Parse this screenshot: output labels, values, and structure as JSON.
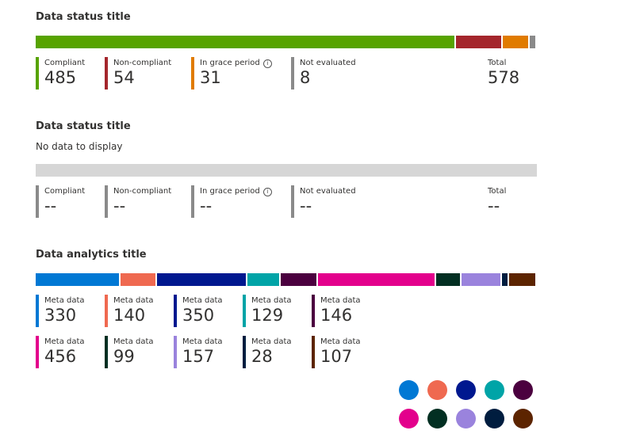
{
  "sections": [
    {
      "title": "Data status title",
      "items": [
        {
          "label": "Compliant",
          "value": 485,
          "color": "#57a300"
        },
        {
          "label": "Non-compliant",
          "value": 54,
          "color": "#a4262c"
        },
        {
          "label": "In grace period",
          "value": 31,
          "color": "#e07b00",
          "info": true
        },
        {
          "label": "Not evaluated",
          "value": 8,
          "color": "#8a8a8a"
        }
      ],
      "total": {
        "label": "Total",
        "value": 578
      }
    },
    {
      "title": "Data status title",
      "message": "No data to display",
      "items": [
        {
          "label": "Compliant",
          "value_label": "--"
        },
        {
          "label": "Non-compliant",
          "value_label": "--"
        },
        {
          "label": "In grace period",
          "value_label": "--",
          "info": true
        },
        {
          "label": "Not evaluated",
          "value_label": "--"
        }
      ],
      "total": {
        "label": "Total",
        "value_label": "--"
      }
    },
    {
      "title": "Data analytics title",
      "items": [
        {
          "label": "Meta data",
          "value": 330,
          "color": "#0078d4"
        },
        {
          "label": "Meta data",
          "value": 140,
          "color": "#ef6950"
        },
        {
          "label": "Meta data",
          "value": 350,
          "color": "#00188f"
        },
        {
          "label": "Meta data",
          "value": 129,
          "color": "#00a4a7"
        },
        {
          "label": "Meta data",
          "value": 146,
          "color": "#4b003f"
        },
        {
          "label": "Meta data",
          "value": 456,
          "color": "#e3008c"
        },
        {
          "label": "Meta data",
          "value": 99,
          "color": "#022f22"
        },
        {
          "label": "Meta data",
          "value": 157,
          "color": "#9a83dd"
        },
        {
          "label": "Meta data",
          "value": 28,
          "color": "#001d3f"
        },
        {
          "label": "Meta data",
          "value": 107,
          "color": "#5c2400"
        }
      ]
    }
  ]
}
